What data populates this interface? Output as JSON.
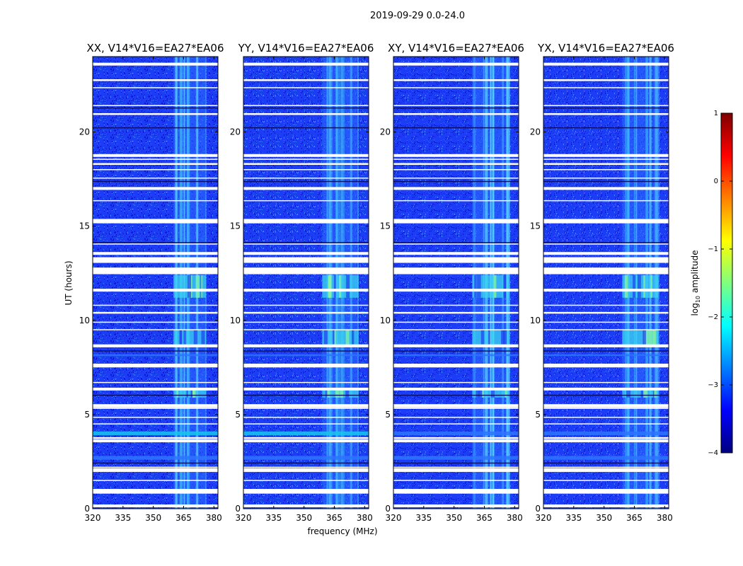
{
  "chart_data": {
    "type": "heatmap",
    "suptitle": "2019-09-29 0.0-24.0",
    "xlabel": "frequency (MHz)",
    "ylabel": "UT (hours)",
    "xlim": [
      320,
      382
    ],
    "ylim": [
      0,
      24
    ],
    "xticks": [
      "320",
      "335",
      "350",
      "365",
      "380"
    ],
    "xtick_values": [
      320,
      335,
      350,
      365,
      380
    ],
    "yticks": [
      "0",
      "5",
      "10",
      "15",
      "20"
    ],
    "ytick_values": [
      0,
      5,
      10,
      15,
      20
    ],
    "panels": [
      {
        "title": "XX, V14*V16=EA27*EA06",
        "rfi_start_mhz": 360,
        "rfi_end_mhz": 376
      },
      {
        "title": "YY, V14*V16=EA27*EA06",
        "rfi_start_mhz": 359,
        "rfi_end_mhz": 377
      },
      {
        "title": "XY, V14*V16=EA27*EA06",
        "rfi_start_mhz": 359,
        "rfi_end_mhz": 377
      },
      {
        "title": "YX, V14*V16=EA27*EA06",
        "rfi_start_mhz": 359,
        "rfi_end_mhz": 377
      }
    ],
    "flagged_ut_hours": [
      0.15,
      0.85,
      1.5,
      2.05,
      2.2,
      3.6,
      3.75,
      4.5,
      4.85,
      5.35,
      6.35,
      6.7,
      7.6,
      7.65,
      8.6,
      8.65,
      9.5,
      9.9,
      10.4,
      10.8,
      11.6,
      12.5,
      12.55,
      12.75,
      13.1,
      13.55,
      14.05,
      15.3,
      15.35,
      16.35,
      17.0,
      17.55,
      18.0,
      18.3,
      18.55,
      18.75,
      20.95,
      21.4,
      22.35,
      22.75,
      23.6
    ],
    "bright_ut_bands": [
      [
        11.2,
        12.4
      ],
      [
        8.7,
        9.5
      ],
      [
        5.9,
        6.3
      ],
      [
        15.2,
        15.4
      ],
      [
        3.9,
        4.1
      ],
      [
        2.6,
        2.8
      ],
      [
        8.1,
        8.2
      ]
    ],
    "colorbar": {
      "label": "log10 amplitude",
      "label_main": "log",
      "label_sub": "10",
      "label_rest": " amplitude",
      "range": [
        -4,
        1
      ],
      "ticks": [
        "1",
        "0",
        "−1",
        "−2",
        "−3",
        "−4"
      ],
      "tick_values": [
        1,
        0,
        -1,
        -2,
        -3,
        -4
      ],
      "colormap": "jet",
      "colors": [
        "#00007f",
        "#0000ff",
        "#007fff",
        "#00ffff",
        "#7fff7f",
        "#ffff00",
        "#ff7f00",
        "#ff0000",
        "#7f0000"
      ]
    }
  }
}
